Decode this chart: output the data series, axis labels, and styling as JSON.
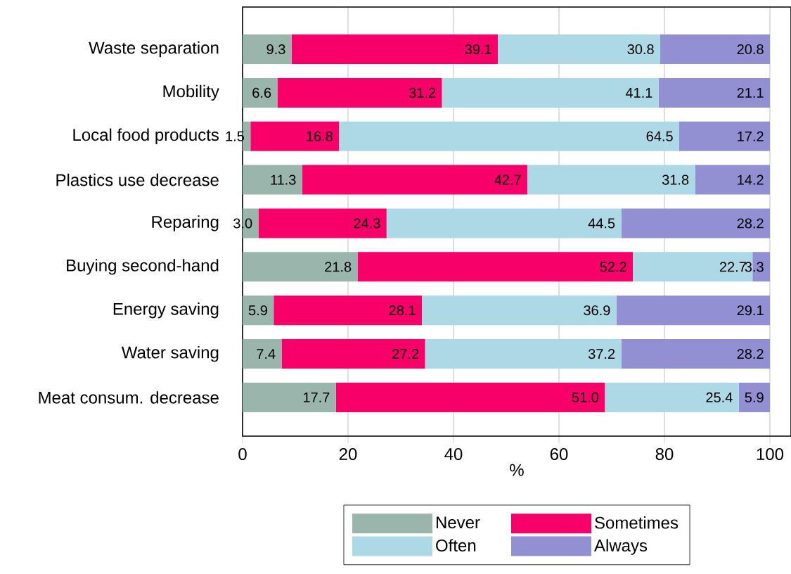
{
  "chart_data": {
    "type": "bar",
    "orientation": "horizontal",
    "stacked": true,
    "xlabel": "%",
    "categories": [
      "Waste separation",
      "Mobility",
      "Local food products",
      "Plastics use decrease",
      "Reparing",
      "Buying second-hand",
      "Energy saving",
      "Water saving",
      "Meat consum. decrease"
    ],
    "series": [
      {
        "name": "Never",
        "color": "#9ab5ac",
        "values": [
          9.3,
          6.6,
          1.5,
          11.3,
          3.0,
          21.8,
          5.9,
          7.4,
          17.7
        ],
        "value_labels": [
          "9.3",
          "6.6",
          "1.5",
          "11.3",
          "3.0",
          "21.8",
          "5.9",
          "7.4",
          "17.7"
        ]
      },
      {
        "name": "Sometimes",
        "color": "#f7006a",
        "values": [
          39.1,
          31.2,
          16.8,
          42.7,
          24.3,
          52.2,
          28.1,
          27.2,
          51.0
        ],
        "value_labels": [
          "39.1",
          "31.2",
          "16.8",
          "42.7",
          "24.3",
          "52.2",
          "28.1",
          "27.2",
          "51.0"
        ]
      },
      {
        "name": "Often",
        "color": "#add8e6",
        "values": [
          30.8,
          41.1,
          64.5,
          31.8,
          44.5,
          22.7,
          36.9,
          37.2,
          25.4
        ],
        "value_labels": [
          "30.8",
          "41.1",
          "64.5",
          "31.8",
          "44.5",
          "22.7",
          "36.9",
          "37.2",
          "25.4"
        ]
      },
      {
        "name": "Always",
        "color": "#938fd3",
        "values": [
          20.8,
          21.1,
          17.2,
          14.2,
          28.2,
          3.3,
          29.1,
          28.2,
          5.9
        ],
        "value_labels": [
          "20.8",
          "21.1",
          "17.2",
          "14.2",
          "28.2",
          "3.3",
          "29.1",
          "28.2",
          "5.9"
        ]
      }
    ],
    "xlim": [
      0,
      104
    ],
    "xticks": [
      0,
      20,
      40,
      60,
      80,
      100
    ],
    "grid": "x",
    "legend": "bottom"
  }
}
